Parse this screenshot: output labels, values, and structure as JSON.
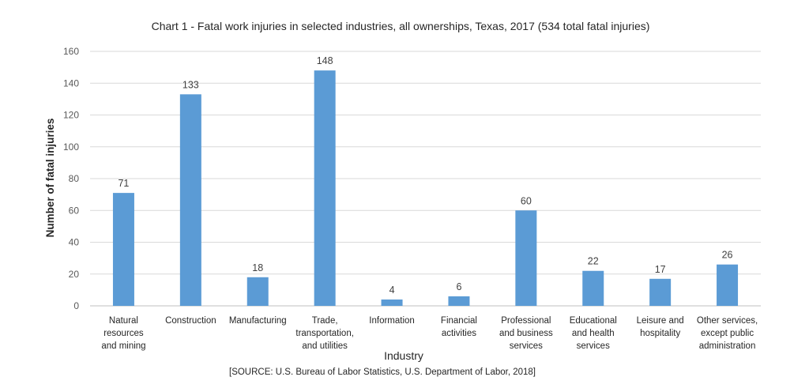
{
  "chart_data": {
    "type": "bar",
    "title": "Chart 1 - Fatal work injuries in selected industries, all ownerships, Texas, 2017 (534 total fatal injuries)",
    "xlabel": "Industry",
    "ylabel": "Number of fatal injuries",
    "ylim": [
      0,
      160
    ],
    "yticks": [
      0,
      20,
      40,
      60,
      80,
      100,
      120,
      140,
      160
    ],
    "grid": true,
    "legend": "none",
    "source": "[SOURCE: U.S. Bureau of Labor Statistics, U.S. Department of Labor, 2018]",
    "bar_color": "#5B9BD5",
    "categories": [
      [
        "Natural",
        "resources",
        "and mining"
      ],
      [
        "Construction"
      ],
      [
        "Manufacturing"
      ],
      [
        "Trade,",
        "transportation,",
        "and utilities"
      ],
      [
        "Information"
      ],
      [
        "Financial",
        "activities"
      ],
      [
        "Professional",
        "and business",
        "services"
      ],
      [
        "Educational",
        "and health",
        "services"
      ],
      [
        "Leisure and",
        "hospitality"
      ],
      [
        "Other services,",
        "except public",
        "administration"
      ]
    ],
    "values": [
      71,
      133,
      18,
      148,
      4,
      6,
      60,
      22,
      17,
      26
    ]
  }
}
